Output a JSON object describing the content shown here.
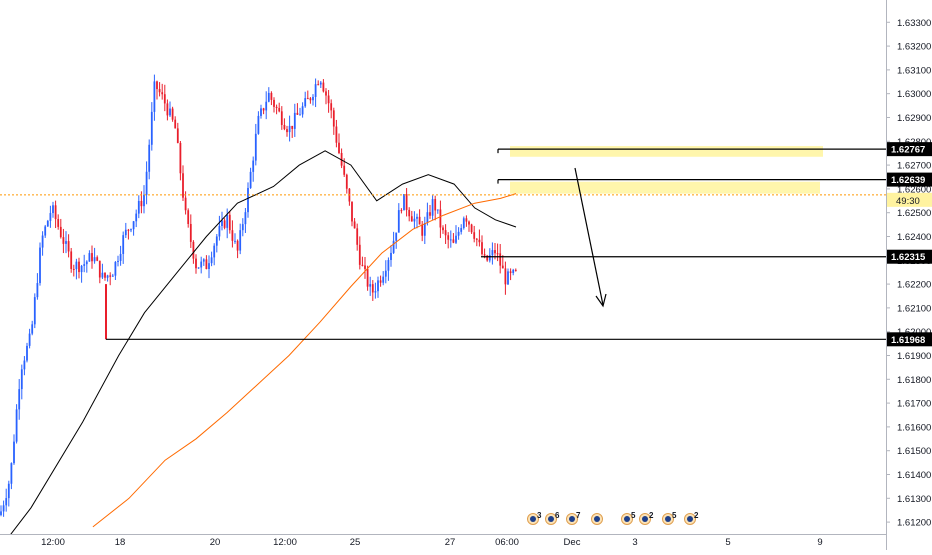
{
  "chart_data": {
    "type": "candlestick",
    "symbol_note": "",
    "y_axis": {
      "min": 1.6115,
      "max": 1.6336,
      "ticks": [
        "1.63300",
        "1.63200",
        "1.63100",
        "1.63000",
        "1.62900",
        "1.62800",
        "1.62700",
        "1.62600",
        "1.62500",
        "1.62400",
        "1.62300",
        "1.62200",
        "1.62100",
        "1.62000",
        "1.61900",
        "1.61800",
        "1.61700",
        "1.61600",
        "1.61500",
        "1.61400",
        "1.61300",
        "1.61200"
      ]
    },
    "x_axis": {
      "ticks": [
        "12:00",
        "18",
        "20",
        "12:00",
        "25",
        "27",
        "06:00",
        "Dec",
        "3",
        "5",
        "9"
      ]
    },
    "levels": [
      {
        "label": "1.62767",
        "value": 1.62767
      },
      {
        "label": "1.62639",
        "value": 1.62639
      },
      {
        "label": "1.62315",
        "value": 1.62315
      },
      {
        "label": "1.61968",
        "value": 1.61968
      }
    ],
    "current_price": {
      "value": 1.62575,
      "countdown": "49:30"
    },
    "zones": [
      {
        "name": "resistance-zone-upper",
        "from": 1.62735,
        "to": 1.6278
      },
      {
        "name": "resistance-zone-lower",
        "from": 1.6258,
        "to": 1.6263
      }
    ],
    "moving_averages": [
      {
        "name": "",
        "color": "#000000",
        "values": [
          [
            0,
            1.6109
          ],
          [
            0.06,
            1.6126
          ],
          [
            0.16,
            1.6162
          ],
          [
            0.23,
            1.619
          ],
          [
            0.28,
            1.6208
          ],
          [
            0.34,
            1.6224
          ],
          [
            0.4,
            1.624
          ],
          [
            0.46,
            1.6254
          ],
          [
            0.53,
            1.6261
          ],
          [
            0.58,
            1.627
          ],
          [
            0.63,
            1.6276
          ],
          [
            0.68,
            1.627
          ],
          [
            0.73,
            1.6255
          ],
          [
            0.78,
            1.6262
          ],
          [
            0.83,
            1.6266
          ],
          [
            0.88,
            1.6262
          ],
          [
            0.92,
            1.6252
          ],
          [
            0.96,
            1.6247
          ],
          [
            1.0,
            1.6244
          ]
        ]
      },
      {
        "name": "",
        "color": "#ff6a00",
        "values": [
          [
            0.18,
            1.6118
          ],
          [
            0.25,
            1.613
          ],
          [
            0.32,
            1.6146
          ],
          [
            0.38,
            1.6155
          ],
          [
            0.44,
            1.6166
          ],
          [
            0.5,
            1.6178
          ],
          [
            0.56,
            1.619
          ],
          [
            0.62,
            1.6204
          ],
          [
            0.68,
            1.6219
          ],
          [
            0.74,
            1.6233
          ],
          [
            0.8,
            1.6243
          ],
          [
            0.86,
            1.6249
          ],
          [
            0.92,
            1.6254
          ],
          [
            0.97,
            1.6256
          ],
          [
            1.0,
            1.6258
          ]
        ]
      }
    ],
    "price_path": [
      [
        0,
        1.6123
      ],
      [
        0.02,
        1.6139
      ],
      [
        0.04,
        1.6185
      ],
      [
        0.06,
        1.6198
      ],
      [
        0.08,
        1.6238
      ],
      [
        0.1,
        1.6252
      ],
      [
        0.12,
        1.624
      ],
      [
        0.14,
        1.6228
      ],
      [
        0.16,
        1.6228
      ],
      [
        0.18,
        1.6232
      ],
      [
        0.2,
        1.6222
      ],
      [
        0.22,
        1.6226
      ],
      [
        0.24,
        1.624
      ],
      [
        0.26,
        1.6248
      ],
      [
        0.28,
        1.6258
      ],
      [
        0.3,
        1.6304
      ],
      [
        0.32,
        1.6296
      ],
      [
        0.34,
        1.6285
      ],
      [
        0.36,
        1.6248
      ],
      [
        0.38,
        1.6228
      ],
      [
        0.4,
        1.6228
      ],
      [
        0.42,
        1.624
      ],
      [
        0.44,
        1.6248
      ],
      [
        0.46,
        1.6233
      ],
      [
        0.48,
        1.6258
      ],
      [
        0.5,
        1.6288
      ],
      [
        0.52,
        1.63
      ],
      [
        0.54,
        1.6292
      ],
      [
        0.56,
        1.6285
      ],
      [
        0.58,
        1.6292
      ],
      [
        0.6,
        1.6298
      ],
      [
        0.62,
        1.6308
      ],
      [
        0.64,
        1.6294
      ],
      [
        0.66,
        1.6272
      ],
      [
        0.68,
        1.625
      ],
      [
        0.7,
        1.6228
      ],
      [
        0.72,
        1.6216
      ],
      [
        0.74,
        1.6224
      ],
      [
        0.76,
        1.6236
      ],
      [
        0.78,
        1.6256
      ],
      [
        0.8,
        1.6248
      ],
      [
        0.82,
        1.6242
      ],
      [
        0.84,
        1.6255
      ],
      [
        0.86,
        1.624
      ],
      [
        0.88,
        1.6236
      ],
      [
        0.9,
        1.625
      ],
      [
        0.92,
        1.6241
      ],
      [
        0.94,
        1.6229
      ],
      [
        0.96,
        1.6234
      ],
      [
        0.98,
        1.6222
      ],
      [
        1.0,
        1.6224
      ]
    ]
  },
  "events": [
    {
      "count": "3"
    },
    {
      "count": "6"
    },
    {
      "count": "7"
    },
    {
      "count": ""
    },
    {
      "count": "5"
    },
    {
      "count": "2"
    },
    {
      "count": "5"
    },
    {
      "count": "2"
    }
  ],
  "colors": {
    "up": "#2962ff",
    "down": "#e91e2b",
    "zone": "#fff59d",
    "axis_text": "#131722",
    "grid": "#e0e3eb",
    "current_price_line": "#ff9800",
    "label_bg_current": "#fff3a0"
  }
}
